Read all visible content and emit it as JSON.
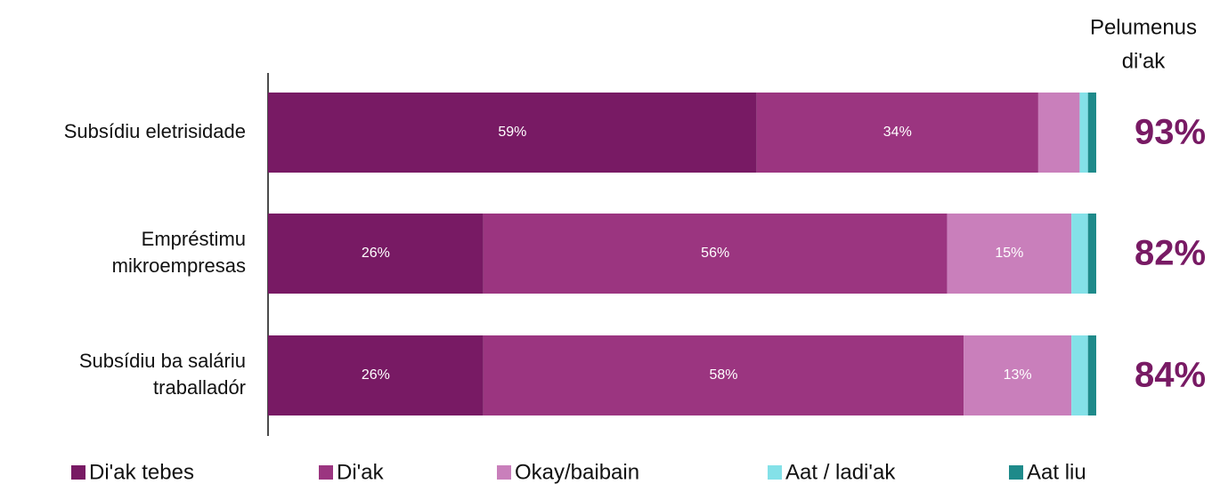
{
  "chart_data": {
    "type": "stacked-bar-horizontal",
    "categories": [
      [
        "Subsídiu eletrisidade"
      ],
      [
        "Empréstimu",
        "mikroempresas"
      ],
      [
        "Subsídiu ba saláriu",
        "traballadór"
      ]
    ],
    "series": [
      {
        "name": "Di'ak tebes",
        "color": "#781a64",
        "values": [
          59,
          26,
          26
        ],
        "value_labels": [
          "59%",
          "26%",
          "26%"
        ]
      },
      {
        "name": "Di'ak",
        "color": "#9b3580",
        "values": [
          34,
          56,
          58
        ],
        "value_labels": [
          "34%",
          "56%",
          "58%"
        ]
      },
      {
        "name": "Okay/baibain",
        "color": "#c97fbb",
        "values": [
          5,
          15,
          13
        ],
        "value_labels": [
          null,
          "15%",
          "13%"
        ]
      },
      {
        "name": "Aat / ladi'ak",
        "color": "#84e1e8",
        "values": [
          1,
          2,
          2
        ]
      },
      {
        "name": "Aat liu",
        "color": "#1e8a8a",
        "values": [
          1,
          1,
          1
        ]
      }
    ],
    "net_title": [
      "Pelumenus",
      "di'ak"
    ],
    "net_labels": [
      "93%",
      "82%",
      "84%"
    ],
    "net_color": "#781a64"
  }
}
